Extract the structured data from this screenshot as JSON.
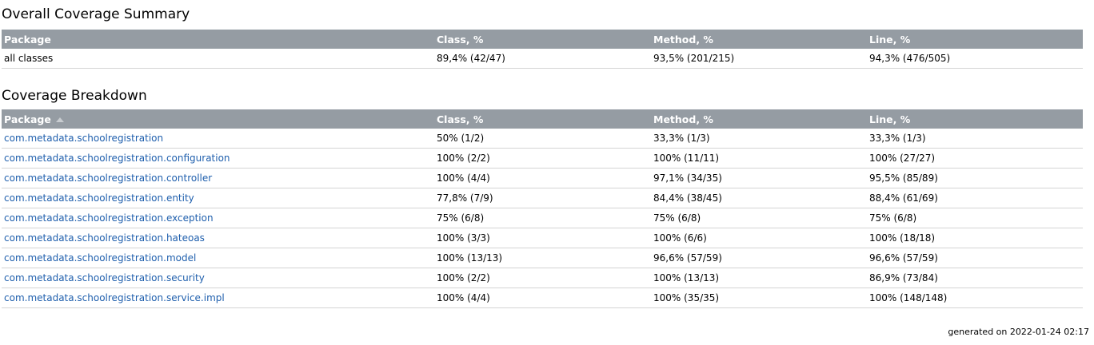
{
  "summary": {
    "title": "Overall Coverage Summary",
    "headers": {
      "package": "Package",
      "class": "Class, %",
      "method": "Method, %",
      "line": "Line, %"
    },
    "row": {
      "package": "all classes",
      "class": "89,4% (42/47)",
      "method": "93,5% (201/215)",
      "line": "94,3% (476/505)"
    }
  },
  "breakdown": {
    "title": "Coverage Breakdown",
    "headers": {
      "package": "Package",
      "class": "Class, %",
      "method": "Method, %",
      "line": "Line, %"
    },
    "sort_icon": "sort-ascending-icon",
    "rows": [
      {
        "package": "com.metadata.schoolregistration",
        "class": "50% (1/2)",
        "method": "33,3% (1/3)",
        "line": "33,3% (1/3)"
      },
      {
        "package": "com.metadata.schoolregistration.configuration",
        "class": "100% (2/2)",
        "method": "100% (11/11)",
        "line": "100% (27/27)"
      },
      {
        "package": "com.metadata.schoolregistration.controller",
        "class": "100% (4/4)",
        "method": "97,1% (34/35)",
        "line": "95,5% (85/89)"
      },
      {
        "package": "com.metadata.schoolregistration.entity",
        "class": "77,8% (7/9)",
        "method": "84,4% (38/45)",
        "line": "88,4% (61/69)"
      },
      {
        "package": "com.metadata.schoolregistration.exception",
        "class": "75% (6/8)",
        "method": "75% (6/8)",
        "line": "75% (6/8)"
      },
      {
        "package": "com.metadata.schoolregistration.hateoas",
        "class": "100% (3/3)",
        "method": "100% (6/6)",
        "line": "100% (18/18)"
      },
      {
        "package": "com.metadata.schoolregistration.model",
        "class": "100% (13/13)",
        "method": "96,6% (57/59)",
        "line": "96,6% (57/59)"
      },
      {
        "package": "com.metadata.schoolregistration.security",
        "class": "100% (2/2)",
        "method": "100% (13/13)",
        "line": "86,9% (73/84)"
      },
      {
        "package": "com.metadata.schoolregistration.service.impl",
        "class": "100% (4/4)",
        "method": "100% (35/35)",
        "line": "100% (148/148)"
      }
    ]
  },
  "footer": {
    "generated": "generated on 2022-01-24 02:17"
  },
  "colors": {
    "header_bg": "#959ca3",
    "link": "#1f5fad",
    "row_border": "#d4d4d4"
  }
}
